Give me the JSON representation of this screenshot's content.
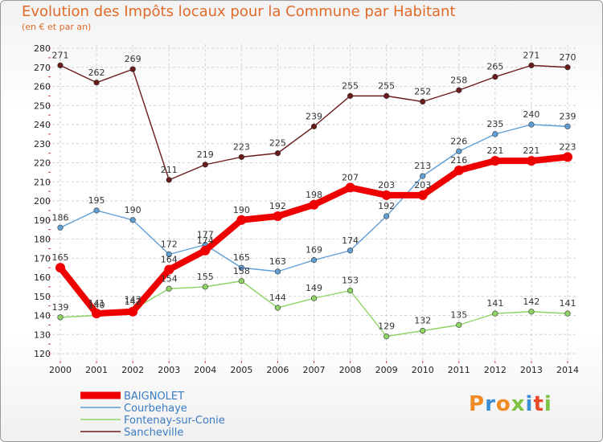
{
  "chart_data": {
    "type": "line",
    "title": "Evolution des Impôts locaux pour la Commune par Habitant",
    "subtitle": "(en € et par an)",
    "x": [
      "2000",
      "2001",
      "2002",
      "2003",
      "2004",
      "2005",
      "2006",
      "2007",
      "2008",
      "2009",
      "2010",
      "2011",
      "2012",
      "2013",
      "2014"
    ],
    "ylim": [
      120,
      280
    ],
    "yticks": [
      120,
      130,
      140,
      150,
      160,
      170,
      180,
      190,
      200,
      210,
      220,
      230,
      240,
      250,
      260,
      270,
      280
    ],
    "grid": true,
    "legend_position": "bottom-left",
    "series": [
      {
        "name": "Sancheville",
        "color": "#6b1a1a",
        "values": [
          271,
          262,
          269,
          211,
          219,
          223,
          225,
          239,
          255,
          255,
          252,
          258,
          265,
          271,
          270
        ]
      },
      {
        "name": "Courbehaye",
        "color": "#5f9fd6",
        "values": [
          186,
          195,
          190,
          172,
          177,
          165,
          163,
          169,
          174,
          192,
          213,
          226,
          235,
          240,
          239
        ]
      },
      {
        "name": "Fontenay-sur-Conie",
        "color": "#8ed464",
        "values": [
          139,
          140,
          143,
          154,
          155,
          158,
          144,
          149,
          153,
          129,
          132,
          135,
          141,
          142,
          141
        ]
      },
      {
        "name": "BAIGNOLET",
        "color": "#ee0000",
        "values": [
          165,
          141,
          142,
          164,
          174,
          190,
          192,
          198,
          207,
          203,
          203,
          216,
          221,
          221,
          223
        ]
      }
    ],
    "legend_order": [
      "BAIGNOLET",
      "Courbehaye",
      "Fontenay-sur-Conie",
      "Sancheville"
    ]
  },
  "logo": {
    "text": "Proxiti",
    "colors": [
      "#f08a24",
      "#3a8fd6",
      "#f08a24",
      "#7ec242",
      "#3a8fd6",
      "#e84a2a",
      "#7ec242"
    ]
  }
}
